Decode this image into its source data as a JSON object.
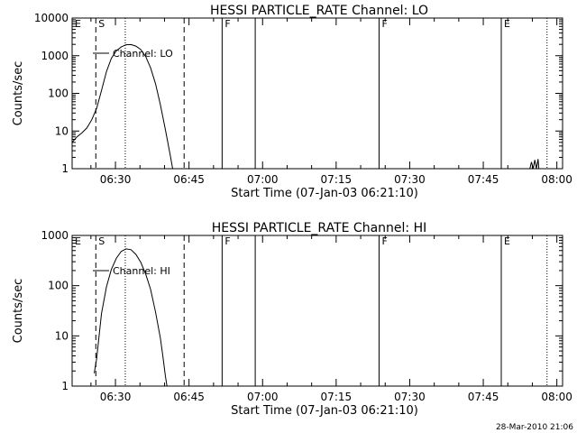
{
  "footer_timestamp": "28-Mar-2010 21:06",
  "chart_data": [
    {
      "type": "line",
      "title": "HESSI PARTICLE_RATE Channel: LO",
      "xlabel": "Start Time (07-Jan-03 06:21:10)",
      "ylabel": "Counts/sec",
      "y_scale": "log",
      "xlim": [
        "06:21:10",
        "08:01:10"
      ],
      "ylim": [
        1,
        10000
      ],
      "x_ticks": [
        "06:30",
        "06:45",
        "07:00",
        "07:15",
        "07:30",
        "07:45",
        "08:00"
      ],
      "y_ticks": [
        "1",
        "10",
        "100",
        "1000",
        "10000"
      ],
      "grid": false,
      "legend": {
        "label": "Channel: LO",
        "placement": "top-left"
      },
      "markers": [
        {
          "label": "E",
          "time": "06:21:10",
          "style": "solid"
        },
        {
          "label": "S",
          "time": "06:26:00",
          "style": "dashed"
        },
        {
          "label": "",
          "time": "06:32:00",
          "style": "dotted"
        },
        {
          "label": "",
          "time": "06:44:00",
          "style": "dashed"
        },
        {
          "label": "F",
          "time": "06:51:45",
          "style": "solid"
        },
        {
          "label": "",
          "time": "06:58:30",
          "style": "solid"
        },
        {
          "label": "F",
          "time": "07:23:45",
          "style": "solid"
        },
        {
          "label": "E",
          "time": "07:48:40",
          "style": "solid"
        },
        {
          "label": "",
          "time": "07:58:00",
          "style": "dotted"
        }
      ],
      "series": [
        {
          "name": "Channel: LO",
          "points": [
            [
              "06:21:10",
              5
            ],
            [
              "06:22:10",
              7
            ],
            [
              "06:23:10",
              9
            ],
            [
              "06:24:10",
              12
            ],
            [
              "06:25:10",
              20
            ],
            [
              "06:26:10",
              40
            ],
            [
              "06:27:10",
              120
            ],
            [
              "06:28:10",
              380
            ],
            [
              "06:29:10",
              850
            ],
            [
              "06:30:10",
              1350
            ],
            [
              "06:31:10",
              1700
            ],
            [
              "06:32:10",
              1950
            ],
            [
              "06:33:10",
              1980
            ],
            [
              "06:34:10",
              1800
            ],
            [
              "06:35:10",
              1450
            ],
            [
              "06:36:10",
              950
            ],
            [
              "06:37:10",
              480
            ],
            [
              "06:38:10",
              180
            ],
            [
              "06:39:10",
              50
            ],
            [
              "06:40:10",
              11
            ],
            [
              "06:41:10",
              2.3
            ],
            [
              "06:41:40",
              1
            ]
          ]
        },
        {
          "name": "",
          "points": [
            [
              "07:54:30",
              1
            ],
            [
              "07:54:50",
              1.5
            ],
            [
              "07:55:10",
              1
            ],
            [
              "07:55:30",
              1.7
            ],
            [
              "07:55:50",
              1
            ],
            [
              "07:56:10",
              1.8
            ],
            [
              "07:56:20",
              1
            ]
          ]
        }
      ]
    },
    {
      "type": "line",
      "title": "HESSI PARTICLE_RATE Channel: HI",
      "xlabel": "Start Time (07-Jan-03 06:21:10)",
      "ylabel": "Counts/sec",
      "y_scale": "log",
      "xlim": [
        "06:21:10",
        "08:01:10"
      ],
      "ylim": [
        1,
        1000
      ],
      "x_ticks": [
        "06:30",
        "06:45",
        "07:00",
        "07:15",
        "07:30",
        "07:45",
        "08:00"
      ],
      "y_ticks": [
        "1",
        "10",
        "100",
        "1000"
      ],
      "grid": false,
      "legend": {
        "label": "Channel: HI",
        "placement": "top-left"
      },
      "markers": [
        {
          "label": "E",
          "time": "06:21:10",
          "style": "solid"
        },
        {
          "label": "S",
          "time": "06:26:00",
          "style": "dashed"
        },
        {
          "label": "",
          "time": "06:32:00",
          "style": "dotted"
        },
        {
          "label": "",
          "time": "06:44:00",
          "style": "dashed"
        },
        {
          "label": "F",
          "time": "06:51:45",
          "style": "solid"
        },
        {
          "label": "",
          "time": "06:58:30",
          "style": "solid"
        },
        {
          "label": "F",
          "time": "07:23:45",
          "style": "solid"
        },
        {
          "label": "E",
          "time": "07:48:40",
          "style": "solid"
        },
        {
          "label": "",
          "time": "07:58:00",
          "style": "dotted"
        }
      ],
      "series": [
        {
          "name": "Channel: HI",
          "points": [
            [
              "06:25:40",
              1.8
            ],
            [
              "06:26:10",
              3.5
            ],
            [
              "06:26:40",
              10
            ],
            [
              "06:27:10",
              28
            ],
            [
              "06:28:10",
              95
            ],
            [
              "06:29:10",
              210
            ],
            [
              "06:30:10",
              350
            ],
            [
              "06:31:10",
              480
            ],
            [
              "06:32:10",
              540
            ],
            [
              "06:33:10",
              520
            ],
            [
              "06:34:10",
              420
            ],
            [
              "06:35:10",
              290
            ],
            [
              "06:36:10",
              170
            ],
            [
              "06:37:10",
              85
            ],
            [
              "06:38:10",
              30
            ],
            [
              "06:39:10",
              9
            ],
            [
              "06:39:40",
              4
            ],
            [
              "06:40:10",
              1.6
            ],
            [
              "06:40:30",
              1
            ]
          ]
        }
      ]
    }
  ]
}
